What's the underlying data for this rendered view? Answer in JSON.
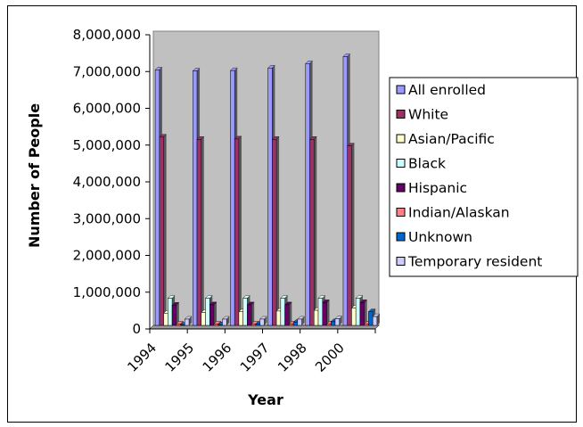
{
  "chart_data": {
    "type": "bar",
    "xlabel": "Year",
    "ylabel": "Number of People",
    "ylim": [
      0,
      8000000
    ],
    "yticks": [
      0,
      1000000,
      2000000,
      3000000,
      4000000,
      5000000,
      6000000,
      7000000,
      8000000
    ],
    "ytick_labels": [
      "0",
      "1,000,000",
      "2,000,000",
      "3,000,000",
      "4,000,000",
      "5,000,000",
      "6,000,000",
      "7,000,000",
      "8,000,000"
    ],
    "categories": [
      "1994",
      "1995",
      "1996",
      "1997",
      "1998",
      "2000"
    ],
    "grid": false,
    "legend_position": "right",
    "plot_background": "#c0c0c0",
    "series": [
      {
        "name": "All enrolled",
        "color": "#9999ff",
        "values": [
          6950000,
          6920000,
          6930000,
          7000000,
          7120000,
          7310000
        ]
      },
      {
        "name": "White",
        "color": "#993366",
        "values": [
          5120000,
          5060000,
          5070000,
          5060000,
          5060000,
          4880000
        ]
      },
      {
        "name": "Asian/Pacific",
        "color": "#ffffcc",
        "values": [
          330000,
          350000,
          370000,
          390000,
          410000,
          470000
        ]
      },
      {
        "name": "Black",
        "color": "#ccffff",
        "values": [
          740000,
          740000,
          740000,
          740000,
          740000,
          740000
        ]
      },
      {
        "name": "Hispanic",
        "color": "#660066",
        "values": [
          550000,
          560000,
          560000,
          560000,
          620000,
          620000
        ]
      },
      {
        "name": "Indian/Alaskan",
        "color": "#ff8080",
        "values": [
          40000,
          40000,
          40000,
          40000,
          40000,
          40000
        ]
      },
      {
        "name": "Unknown",
        "color": "#0066cc",
        "values": [
          10000,
          20000,
          30000,
          80000,
          100000,
          370000
        ]
      },
      {
        "name": "Temporary resident",
        "color": "#ccccff",
        "values": [
          170000,
          170000,
          170000,
          170000,
          180000,
          240000
        ]
      }
    ]
  }
}
